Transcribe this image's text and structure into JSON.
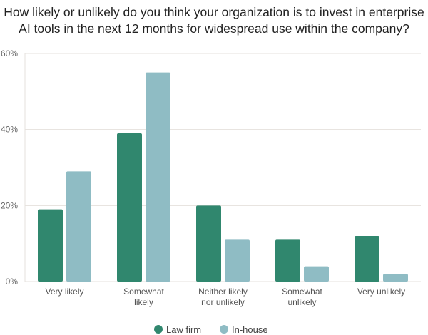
{
  "chart_data": {
    "type": "bar",
    "title": "How likely or unlikely do you think your organization is to invest in enterprise AI tools in the next 12 months for widespread use within the company?",
    "categories": [
      [
        "Very likely"
      ],
      [
        "Somewhat",
        "likely"
      ],
      [
        "Neither likely",
        "nor unlikely"
      ],
      [
        "Somewhat",
        "unlikely"
      ],
      [
        "Very unlikely"
      ]
    ],
    "series": [
      {
        "name": "Law firm",
        "color": "#30876e",
        "values": [
          19,
          39,
          20,
          11,
          12
        ]
      },
      {
        "name": "In-house",
        "color": "#8fbcc4",
        "values": [
          29,
          55,
          11,
          4,
          2
        ]
      }
    ],
    "yticks": [
      "0%",
      "20%",
      "40%",
      "60%"
    ],
    "ytick_values": [
      0,
      20,
      40,
      60
    ],
    "ylim": [
      0,
      60
    ],
    "grid": true,
    "legend_placement": "bottom"
  }
}
